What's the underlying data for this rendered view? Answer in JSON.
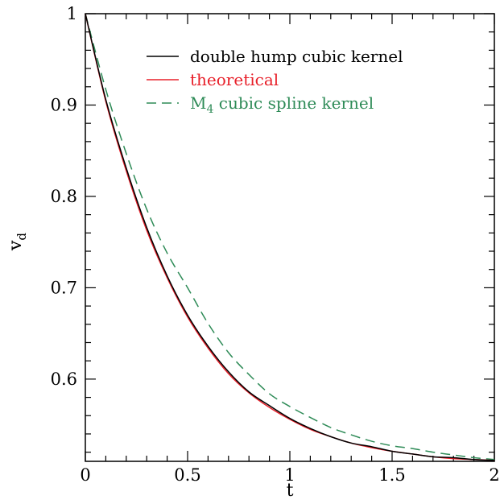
{
  "chart_data": {
    "type": "line",
    "xlabel": "t",
    "ylabel": "v",
    "ylabel_subscript": "d",
    "xlim": [
      0,
      2
    ],
    "ylim": [
      0.51,
      1.0
    ],
    "xticks": [
      0,
      0.5,
      1,
      1.5,
      2
    ],
    "xtick_labels": [
      "0",
      "0.5",
      "1",
      "1.5",
      "2"
    ],
    "yticks": [
      0.6,
      0.7,
      0.8,
      0.9,
      1.0
    ],
    "ytick_labels": [
      "0.6",
      "0.7",
      "0.8",
      "0.9",
      "1"
    ],
    "x_minor_step": 0.1,
    "y_minor_step": 0.02,
    "grid": false,
    "legend_position": "top-right",
    "series": [
      {
        "name": "double hump cubic kernel",
        "color": "#000000",
        "dash": "solid",
        "x": [
          0,
          0.1,
          0.2,
          0.3,
          0.4,
          0.5,
          0.6,
          0.7,
          0.8,
          0.9,
          1.0,
          1.1,
          1.2,
          1.3,
          1.4,
          1.5,
          1.6,
          1.7,
          1.8,
          1.9,
          2.0
        ],
        "y": [
          1.0,
          0.906,
          0.831,
          0.766,
          0.713,
          0.67,
          0.636,
          0.608,
          0.586,
          0.571,
          0.557,
          0.546,
          0.537,
          0.53,
          0.526,
          0.521,
          0.518,
          0.515,
          0.514,
          0.512,
          0.511
        ]
      },
      {
        "name": "theoretical",
        "color": "#e8202a",
        "dash": "solid",
        "x": [
          0,
          0.1,
          0.2,
          0.3,
          0.4,
          0.5,
          0.6,
          0.7,
          0.8,
          0.9,
          1.0,
          1.1,
          1.2,
          1.3,
          1.4,
          1.5,
          1.6,
          1.7,
          1.8,
          1.9,
          2.0
        ],
        "y": [
          1.0,
          0.904,
          0.828,
          0.763,
          0.711,
          0.668,
          0.634,
          0.606,
          0.585,
          0.569,
          0.556,
          0.545,
          0.537,
          0.53,
          0.525,
          0.521,
          0.518,
          0.515,
          0.513,
          0.512,
          0.511
        ]
      },
      {
        "name": "M4 cubic spline kernel",
        "name_main": "M",
        "name_sub": "4",
        "name_rest": " cubic spline kernel",
        "color": "#2e8b57",
        "dash": "dashed",
        "x": [
          0,
          0.1,
          0.2,
          0.3,
          0.4,
          0.5,
          0.6,
          0.7,
          0.8,
          0.9,
          1.0,
          1.1,
          1.2,
          1.3,
          1.4,
          1.5,
          1.6,
          1.7,
          1.8,
          1.9,
          2.0
        ],
        "y": [
          1.0,
          0.917,
          0.847,
          0.786,
          0.738,
          0.7,
          0.661,
          0.629,
          0.605,
          0.584,
          0.57,
          0.558,
          0.547,
          0.539,
          0.532,
          0.527,
          0.524,
          0.52,
          0.517,
          0.514,
          0.512
        ]
      }
    ]
  }
}
